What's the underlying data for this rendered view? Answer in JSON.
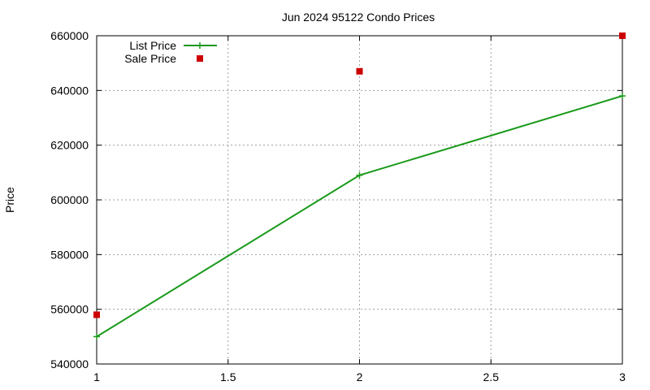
{
  "chart_data": {
    "type": "line",
    "title": "Jun 2024 95122 Condo Prices",
    "xlabel": "",
    "ylabel": "Price",
    "xlim": [
      1,
      3
    ],
    "ylim": [
      540000,
      660000
    ],
    "x_ticks": [
      1,
      1.5,
      2,
      2.5,
      3
    ],
    "x_tick_labels": [
      "1",
      "1.5",
      "2",
      "2.5",
      "3"
    ],
    "y_ticks": [
      540000,
      560000,
      580000,
      600000,
      620000,
      640000,
      660000
    ],
    "y_tick_labels": [
      "540000",
      "560000",
      "580000",
      "600000",
      "620000",
      "640000",
      "660000"
    ],
    "grid": true,
    "legend_position": "top-left",
    "series": [
      {
        "name": "List Price",
        "style": "line-plus",
        "color": "#1a9a1a",
        "x": [
          1,
          2,
          3
        ],
        "values": [
          550000,
          609000,
          638000
        ]
      },
      {
        "name": "Sale Price",
        "style": "square-points",
        "color": "#cc0000",
        "x": [
          1,
          2,
          3
        ],
        "values": [
          558000,
          647000,
          660000
        ]
      }
    ]
  }
}
